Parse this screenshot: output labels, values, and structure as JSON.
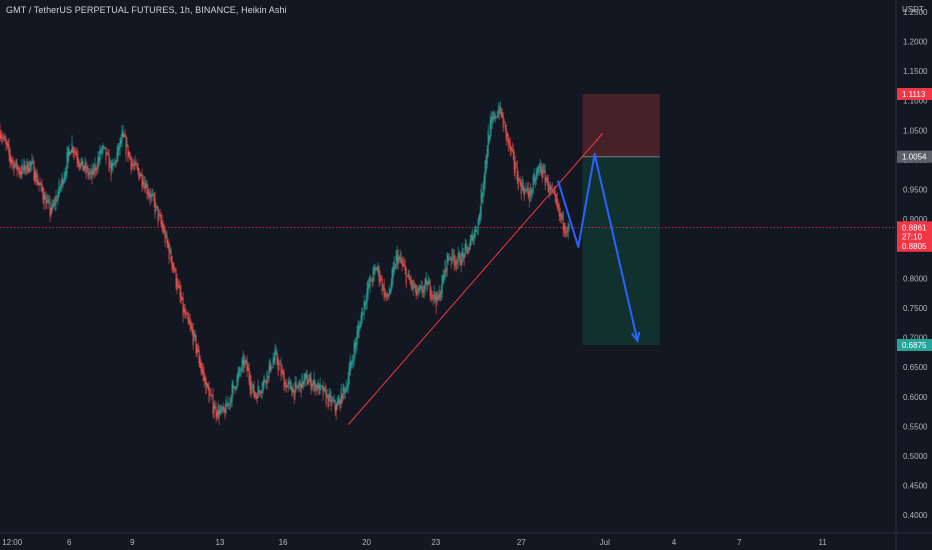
{
  "header": {
    "title": "GMT / TetherUS PERPETUAL FUTURES, 1h, BINANCE, Heikin Ashi",
    "currency": "USDT"
  },
  "colors": {
    "background": "#131722",
    "up": "#26a69a",
    "down": "#ef5350",
    "axis_text": "#b2b5be",
    "trendline": "#f23645",
    "projection": "#2962ff",
    "stop_zone": "#4a2229",
    "target_zone": "#113330"
  },
  "chart_data": {
    "type": "candlestick",
    "title": "GMT / TetherUS PERPETUAL FUTURES, 1h, BINANCE, Heikin Ashi",
    "y_ticks": [
      "1.2500",
      "1.2000",
      "1.1500",
      "1.1000",
      "1.0500",
      "1.0000",
      "0.9500",
      "0.9000",
      "0.8500",
      "0.8000",
      "0.7500",
      "0.7000",
      "0.6500",
      "0.6000",
      "0.5500",
      "0.5000",
      "0.4500",
      "0.4000"
    ],
    "x_ticks": [
      "12:00",
      "6",
      "9",
      "13",
      "16",
      "20",
      "23",
      "27",
      "Jul",
      "4",
      "7",
      "11"
    ],
    "ylim": [
      0.37,
      1.27
    ],
    "price_path": [
      {
        "x": 0,
        "y": 1.05
      },
      {
        "x": 0.5,
        "y": 1.0
      },
      {
        "x": 1,
        "y": 0.98
      },
      {
        "x": 1.5,
        "y": 0.995
      },
      {
        "x": 2,
        "y": 0.95
      },
      {
        "x": 2.5,
        "y": 0.91
      },
      {
        "x": 3,
        "y": 0.96
      },
      {
        "x": 3.5,
        "y": 1.03
      },
      {
        "x": 4,
        "y": 0.99
      },
      {
        "x": 4.5,
        "y": 0.97
      },
      {
        "x": 5,
        "y": 1.02
      },
      {
        "x": 5.5,
        "y": 0.98
      },
      {
        "x": 6,
        "y": 1.04
      },
      {
        "x": 6.5,
        "y": 0.99
      },
      {
        "x": 7,
        "y": 0.97
      },
      {
        "x": 7.5,
        "y": 0.93
      },
      {
        "x": 8,
        "y": 0.88
      },
      {
        "x": 8.5,
        "y": 0.82
      },
      {
        "x": 9,
        "y": 0.74
      },
      {
        "x": 9.5,
        "y": 0.7
      },
      {
        "x": 10,
        "y": 0.63
      },
      {
        "x": 10.5,
        "y": 0.58
      },
      {
        "x": 11,
        "y": 0.57
      },
      {
        "x": 11.5,
        "y": 0.62
      },
      {
        "x": 12,
        "y": 0.66
      },
      {
        "x": 12.5,
        "y": 0.6
      },
      {
        "x": 13,
        "y": 0.63
      },
      {
        "x": 13.5,
        "y": 0.67
      },
      {
        "x": 14,
        "y": 0.62
      },
      {
        "x": 14.5,
        "y": 0.61
      },
      {
        "x": 15,
        "y": 0.63
      },
      {
        "x": 15.5,
        "y": 0.62
      },
      {
        "x": 16,
        "y": 0.6
      },
      {
        "x": 16.5,
        "y": 0.58
      },
      {
        "x": 17,
        "y": 0.62
      },
      {
        "x": 17.5,
        "y": 0.7
      },
      {
        "x": 18,
        "y": 0.78
      },
      {
        "x": 18.5,
        "y": 0.82
      },
      {
        "x": 19,
        "y": 0.76
      },
      {
        "x": 19.5,
        "y": 0.84
      },
      {
        "x": 20,
        "y": 0.8
      },
      {
        "x": 20.5,
        "y": 0.77
      },
      {
        "x": 21,
        "y": 0.79
      },
      {
        "x": 21.5,
        "y": 0.76
      },
      {
        "x": 22,
        "y": 0.84
      },
      {
        "x": 22.5,
        "y": 0.83
      },
      {
        "x": 23,
        "y": 0.85
      },
      {
        "x": 23.5,
        "y": 0.9
      },
      {
        "x": 24,
        "y": 1.05
      },
      {
        "x": 24.5,
        "y": 1.09
      },
      {
        "x": 25,
        "y": 1.02
      },
      {
        "x": 25.5,
        "y": 0.96
      },
      {
        "x": 26,
        "y": 0.94
      },
      {
        "x": 26.5,
        "y": 0.99
      },
      {
        "x": 27,
        "y": 0.95
      },
      {
        "x": 27.5,
        "y": 0.9
      },
      {
        "x": 28,
        "y": 0.88
      }
    ],
    "x_domain": [
      0,
      44
    ],
    "x_tick_positions": [
      0.6,
      3.4,
      6.5,
      10.8,
      13.9,
      18.0,
      21.4,
      25.6,
      29.7,
      33.1,
      36.3,
      40.4
    ],
    "trendline": [
      {
        "x": 17.1,
        "y": 0.553
      },
      {
        "x": 29.6,
        "y": 1.045
      }
    ],
    "projection": [
      {
        "x": 27.4,
        "y": 0.965
      },
      {
        "x": 28.4,
        "y": 0.853
      },
      {
        "x": 29.2,
        "y": 1.01
      },
      {
        "x": 31.3,
        "y": 0.695
      }
    ],
    "position_box": {
      "x_start": 28.6,
      "x_end": 32.4,
      "stop": 1.1113,
      "entry": 1.0054,
      "target": 0.6875
    },
    "current_price": 0.8861,
    "labels": [
      {
        "text": "1.1113",
        "y": 1.1113,
        "color": "#f23645"
      },
      {
        "text": "1.0054",
        "y": 1.0054,
        "color": "#5d606b"
      },
      {
        "text": "0.8861",
        "y": 0.8861,
        "color": "#f23645"
      },
      {
        "text": "27:10",
        "y": 0.8705,
        "color": "#f23645"
      },
      {
        "text": "0.8805",
        "y": 0.855,
        "color": "#f23645"
      },
      {
        "text": "0.6875",
        "y": 0.6875,
        "color": "#26a69a"
      }
    ]
  }
}
